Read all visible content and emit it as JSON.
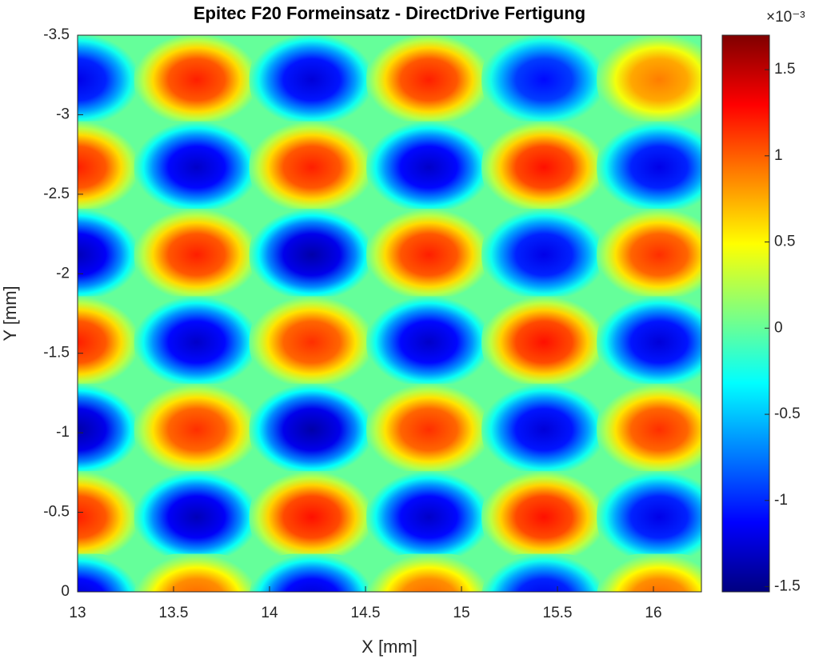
{
  "chart_data": {
    "type": "heatmap",
    "title": "Epitec F20 Formeinsatz - DirectDrive Fertigung",
    "x_label": "X [mm]",
    "y_label": "Y [mm]",
    "colorbar_exponent": "×10⁻³",
    "colormap": "jet",
    "x": [
      13.0,
      13.62,
      14.22,
      14.83,
      15.43,
      16.03
    ],
    "y": [
      -3.22,
      -2.67,
      -2.12,
      -1.57,
      -1.02,
      -0.47,
      0.05
    ],
    "z": [
      [
        -1.2,
        1.2,
        -1.25,
        1.2,
        -1.1,
        0.9
      ],
      [
        1.2,
        -1.3,
        1.2,
        -1.3,
        1.25,
        -1.2
      ],
      [
        -1.35,
        1.2,
        -1.4,
        1.2,
        -1.2,
        1.15
      ],
      [
        1.2,
        -1.3,
        1.15,
        -1.3,
        1.25,
        -1.25
      ],
      [
        -1.4,
        1.15,
        -1.4,
        1.15,
        -1.25,
        1.15
      ],
      [
        1.2,
        -1.35,
        1.25,
        -1.3,
        1.25,
        -1.2
      ],
      [
        -1.3,
        1.0,
        -1.3,
        1.0,
        -1.2,
        1.0
      ]
    ],
    "xlim": [
      13,
      16.25
    ],
    "xticks": [
      13,
      13.5,
      14,
      14.5,
      15,
      15.5,
      16
    ],
    "ylim": [
      -3.5,
      0
    ],
    "yticks": [
      -3.5,
      -3,
      -2.5,
      -2,
      -1.5,
      -1,
      -0.5,
      0
    ],
    "clim": [
      -1.53,
      1.7
    ],
    "cticks": [
      -1.5,
      -1,
      -0.5,
      0,
      0.5,
      1,
      1.5
    ]
  }
}
